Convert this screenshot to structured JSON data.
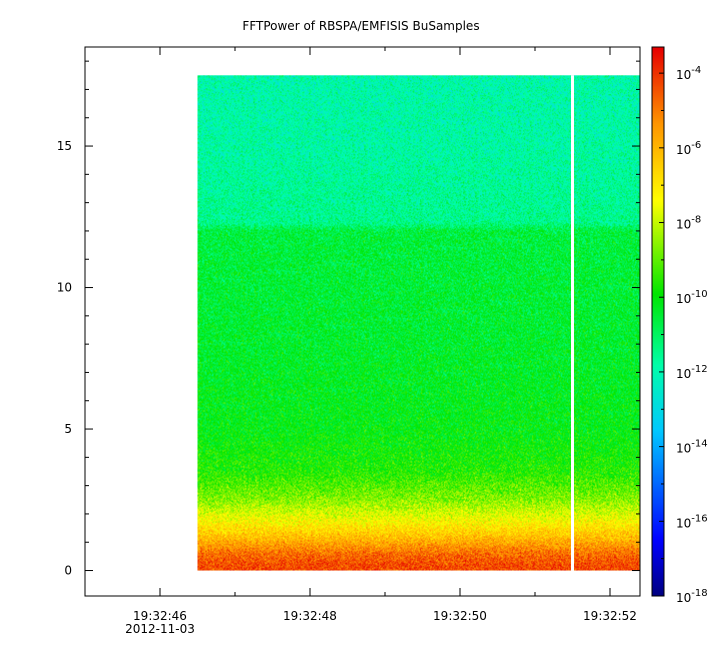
{
  "chart_data": {
    "type": "heatmap",
    "title": "FFTPower of RBSPA/EMFISIS  BuSamples",
    "xlabel": "",
    "ylabel": "",
    "x_tick_labels": [
      "19:32:46",
      "19:32:48",
      "19:32:50",
      "19:32:52"
    ],
    "x_date_label": "2012-11-03",
    "x_range_seconds": [
      45.0,
      52.4
    ],
    "data_span_seconds": [
      46.5,
      52.4
    ],
    "data_gap_seconds": 51.5,
    "y_ticks": [
      0,
      5,
      10,
      15
    ],
    "ylim": [
      -0.9,
      18.5
    ],
    "data_y_range": [
      0.0,
      17.5
    ],
    "colorbar": {
      "scale": "log",
      "range_exponent": [
        -18,
        -3.3
      ],
      "tick_exponents": [
        -18,
        -16,
        -14,
        -12,
        -10,
        -8,
        -6,
        -4
      ],
      "tick_base": "10"
    },
    "spectrum_profile": [
      {
        "y": 0.2,
        "log_power": -4.3
      },
      {
        "y": 0.6,
        "log_power": -4.8
      },
      {
        "y": 1.2,
        "log_power": -6.2
      },
      {
        "y": 1.8,
        "log_power": -7.4
      },
      {
        "y": 2.5,
        "log_power": -8.6
      },
      {
        "y": 3.5,
        "log_power": -9.6
      },
      {
        "y": 5.0,
        "log_power": -10.1
      },
      {
        "y": 8.0,
        "log_power": -10.4
      },
      {
        "y": 12.0,
        "log_power": -10.6
      },
      {
        "y": 12.3,
        "log_power": -11.5
      },
      {
        "y": 15.0,
        "log_power": -11.8
      },
      {
        "y": 17.5,
        "log_power": -11.9
      }
    ]
  }
}
